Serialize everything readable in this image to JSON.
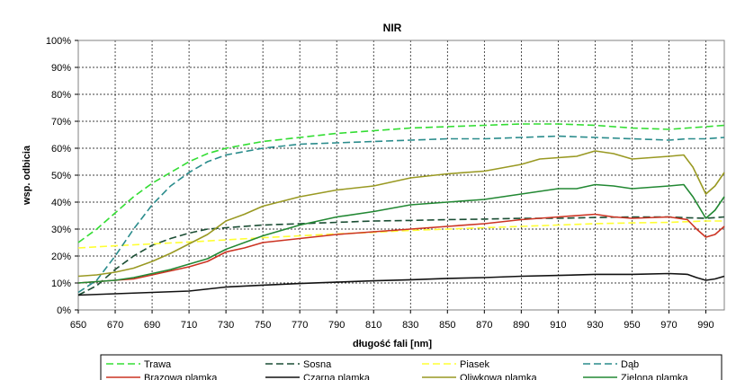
{
  "chart_data": {
    "type": "line",
    "title": "NIR",
    "xlabel": "długość fali [nm]",
    "ylabel": "wsp. odbicia",
    "xlim": [
      650,
      1000
    ],
    "ylim": [
      0,
      100
    ],
    "x_ticks": [
      650,
      670,
      690,
      710,
      730,
      750,
      770,
      790,
      810,
      830,
      850,
      870,
      890,
      910,
      930,
      950,
      970,
      990
    ],
    "x_tick_labels": [
      "650",
      "670",
      "690",
      "710",
      "730",
      "750",
      "770",
      "790",
      "810",
      "830",
      "850",
      "870",
      "890",
      "910",
      "930",
      "950",
      "970",
      "990"
    ],
    "y_ticks": [
      0,
      10,
      20,
      30,
      40,
      50,
      60,
      70,
      80,
      90,
      100
    ],
    "y_tick_labels": [
      "0%",
      "10%",
      "20%",
      "30%",
      "40%",
      "50%",
      "60%",
      "70%",
      "80%",
      "90%",
      "100%"
    ],
    "grid": "dashed",
    "legend_position": "bottom",
    "series": [
      {
        "name": "Trawa",
        "color": "#33dd33",
        "dash": "dashed",
        "points": [
          [
            650,
            25
          ],
          [
            660,
            30
          ],
          [
            670,
            36
          ],
          [
            680,
            42
          ],
          [
            690,
            47
          ],
          [
            700,
            51
          ],
          [
            710,
            55
          ],
          [
            720,
            58
          ],
          [
            730,
            60
          ],
          [
            750,
            62.5
          ],
          [
            770,
            64
          ],
          [
            790,
            65.5
          ],
          [
            810,
            66.5
          ],
          [
            830,
            67.5
          ],
          [
            850,
            68
          ],
          [
            870,
            68.5
          ],
          [
            890,
            69
          ],
          [
            910,
            69
          ],
          [
            930,
            68.5
          ],
          [
            950,
            67.5
          ],
          [
            970,
            67
          ],
          [
            980,
            67.5
          ],
          [
            990,
            68
          ],
          [
            1000,
            68.5
          ]
        ]
      },
      {
        "name": "Sosna",
        "color": "#1a4d33",
        "dash": "dashed",
        "points": [
          [
            650,
            5.5
          ],
          [
            660,
            9
          ],
          [
            670,
            15
          ],
          [
            680,
            20
          ],
          [
            690,
            24
          ],
          [
            700,
            26.5
          ],
          [
            710,
            28.5
          ],
          [
            720,
            30
          ],
          [
            730,
            30.5
          ],
          [
            750,
            31.5
          ],
          [
            770,
            32
          ],
          [
            790,
            32.5
          ],
          [
            810,
            33
          ],
          [
            830,
            33.2
          ],
          [
            850,
            33.5
          ],
          [
            870,
            33.7
          ],
          [
            890,
            34
          ],
          [
            910,
            34
          ],
          [
            930,
            34.3
          ],
          [
            950,
            34.5
          ],
          [
            970,
            34.5
          ],
          [
            980,
            34.2
          ],
          [
            990,
            34
          ],
          [
            1000,
            34.5
          ]
        ]
      },
      {
        "name": "Piasek",
        "color": "#ffff33",
        "dash": "dashed",
        "points": [
          [
            650,
            23
          ],
          [
            670,
            23.8
          ],
          [
            690,
            24.5
          ],
          [
            710,
            25.2
          ],
          [
            730,
            26
          ],
          [
            750,
            26.8
          ],
          [
            770,
            27.5
          ],
          [
            790,
            28.2
          ],
          [
            810,
            28.8
          ],
          [
            830,
            29.5
          ],
          [
            850,
            30
          ],
          [
            870,
            30.5
          ],
          [
            890,
            31
          ],
          [
            910,
            31.5
          ],
          [
            930,
            32
          ],
          [
            950,
            32.3
          ],
          [
            970,
            32.5
          ],
          [
            990,
            33
          ],
          [
            1000,
            33
          ]
        ]
      },
      {
        "name": "Dąb",
        "color": "#2a8c8c",
        "dash": "dashed",
        "points": [
          [
            650,
            6.5
          ],
          [
            660,
            11
          ],
          [
            670,
            20
          ],
          [
            680,
            30
          ],
          [
            690,
            39
          ],
          [
            700,
            46
          ],
          [
            710,
            51
          ],
          [
            720,
            55
          ],
          [
            730,
            57.5
          ],
          [
            750,
            60
          ],
          [
            770,
            61.5
          ],
          [
            790,
            62
          ],
          [
            810,
            62.5
          ],
          [
            830,
            63
          ],
          [
            850,
            63.5
          ],
          [
            870,
            63.5
          ],
          [
            890,
            64
          ],
          [
            910,
            64.5
          ],
          [
            930,
            64
          ],
          [
            950,
            63.5
          ],
          [
            970,
            63
          ],
          [
            980,
            63.5
          ],
          [
            990,
            63.5
          ],
          [
            1000,
            64
          ]
        ]
      },
      {
        "name": "Brązowa plamka",
        "color": "#cc3322",
        "dash": "solid",
        "points": [
          [
            650,
            10
          ],
          [
            660,
            10.5
          ],
          [
            670,
            11
          ],
          [
            680,
            11.5
          ],
          [
            690,
            13
          ],
          [
            700,
            14.5
          ],
          [
            710,
            16
          ],
          [
            720,
            18
          ],
          [
            730,
            21.5
          ],
          [
            740,
            23
          ],
          [
            750,
            25
          ],
          [
            770,
            26.5
          ],
          [
            790,
            28
          ],
          [
            810,
            29
          ],
          [
            830,
            30
          ],
          [
            850,
            31
          ],
          [
            870,
            32
          ],
          [
            890,
            33.5
          ],
          [
            910,
            34.5
          ],
          [
            930,
            35.5
          ],
          [
            940,
            34.5
          ],
          [
            950,
            34
          ],
          [
            970,
            34.5
          ],
          [
            980,
            33.5
          ],
          [
            985,
            30
          ],
          [
            990,
            27
          ],
          [
            995,
            28
          ],
          [
            1000,
            31
          ]
        ]
      },
      {
        "name": "Czarna plamka",
        "color": "#111111",
        "dash": "solid",
        "points": [
          [
            650,
            5.5
          ],
          [
            670,
            6
          ],
          [
            690,
            6.5
          ],
          [
            710,
            7
          ],
          [
            730,
            8.5
          ],
          [
            750,
            9.2
          ],
          [
            770,
            9.8
          ],
          [
            790,
            10.3
          ],
          [
            810,
            10.8
          ],
          [
            830,
            11.2
          ],
          [
            850,
            11.7
          ],
          [
            870,
            12
          ],
          [
            890,
            12.5
          ],
          [
            910,
            12.8
          ],
          [
            930,
            13.2
          ],
          [
            950,
            13.2
          ],
          [
            970,
            13.5
          ],
          [
            980,
            13.2
          ],
          [
            985,
            12
          ],
          [
            990,
            11
          ],
          [
            995,
            11.5
          ],
          [
            1000,
            12.5
          ]
        ]
      },
      {
        "name": "Oliwkowa plamka",
        "color": "#999922",
        "dash": "solid",
        "points": [
          [
            650,
            12.5
          ],
          [
            660,
            13
          ],
          [
            670,
            14
          ],
          [
            680,
            15.5
          ],
          [
            690,
            18
          ],
          [
            700,
            21
          ],
          [
            710,
            24.5
          ],
          [
            720,
            28
          ],
          [
            730,
            33
          ],
          [
            740,
            35.5
          ],
          [
            750,
            38.5
          ],
          [
            770,
            42
          ],
          [
            790,
            44.5
          ],
          [
            810,
            46
          ],
          [
            830,
            49
          ],
          [
            850,
            50.5
          ],
          [
            870,
            51.5
          ],
          [
            890,
            54
          ],
          [
            900,
            56
          ],
          [
            910,
            56.5
          ],
          [
            920,
            57
          ],
          [
            930,
            59
          ],
          [
            940,
            58
          ],
          [
            950,
            56
          ],
          [
            960,
            56.5
          ],
          [
            970,
            57
          ],
          [
            978,
            57.5
          ],
          [
            983,
            53
          ],
          [
            990,
            43
          ],
          [
            995,
            46
          ],
          [
            1000,
            51
          ]
        ]
      },
      {
        "name": "Zielona plamka",
        "color": "#228833",
        "dash": "solid",
        "points": [
          [
            650,
            10
          ],
          [
            660,
            10.5
          ],
          [
            670,
            11
          ],
          [
            680,
            12
          ],
          [
            690,
            13.5
          ],
          [
            700,
            15
          ],
          [
            710,
            17
          ],
          [
            720,
            19
          ],
          [
            730,
            22.5
          ],
          [
            750,
            27.5
          ],
          [
            770,
            31.5
          ],
          [
            790,
            34.5
          ],
          [
            810,
            36.5
          ],
          [
            830,
            39
          ],
          [
            850,
            40
          ],
          [
            870,
            41
          ],
          [
            890,
            43
          ],
          [
            910,
            45
          ],
          [
            920,
            45
          ],
          [
            930,
            46.5
          ],
          [
            940,
            46
          ],
          [
            950,
            45
          ],
          [
            960,
            45.5
          ],
          [
            970,
            46
          ],
          [
            978,
            46.5
          ],
          [
            983,
            42
          ],
          [
            990,
            34
          ],
          [
            995,
            37
          ],
          [
            1000,
            42
          ]
        ]
      }
    ]
  }
}
